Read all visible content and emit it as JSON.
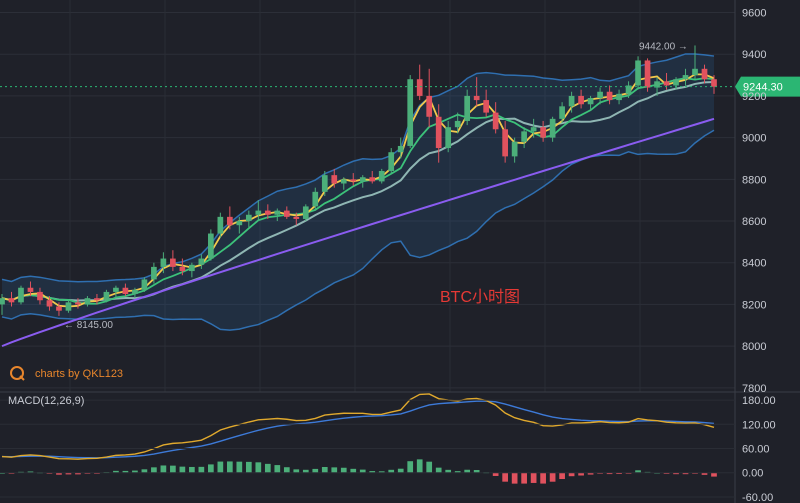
{
  "chart_data": [
    {
      "type": "candlestick",
      "title": "BTC小时图",
      "watermark": "charts by QKL123",
      "y_axis": {
        "ticks": [
          7800,
          8000,
          8200,
          8400,
          8600,
          8800,
          9000,
          9200,
          9400,
          9600
        ],
        "tick_labels": [
          "7800",
          "8000",
          "8200",
          "8400",
          "8600",
          "8800",
          "9000",
          "9200",
          "9400",
          "9600"
        ],
        "ylim": [
          7780,
          9660
        ]
      },
      "current_price": 9244.3,
      "current_price_label": "9244.30",
      "high_marker": {
        "value": 9442.0,
        "label": "9442.00 →"
      },
      "low_marker": {
        "value": 8145.0,
        "label": "← 8145.00"
      },
      "grid": true,
      "colors": {
        "up": "#4caf7a",
        "down": "#e0525e",
        "ma_fast": "#f3c94b",
        "ma_mid": "#3cc27a",
        "ma_slow": "#8fb6b3",
        "ma_long": "#8a5cf0",
        "bollinger": "#2f6fb0",
        "title": "#e53935",
        "price_tag": "#2bb673"
      },
      "pattern": [
        {
          "o": 8200,
          "h": 8250,
          "l": 8150,
          "c": 8230
        },
        {
          "o": 8230,
          "h": 8260,
          "l": 8190,
          "c": 8210
        },
        {
          "o": 8210,
          "h": 8290,
          "l": 8200,
          "c": 8280
        },
        {
          "o": 8280,
          "h": 8310,
          "l": 8240,
          "c": 8260
        },
        {
          "o": 8260,
          "h": 8280,
          "l": 8200,
          "c": 8220
        },
        {
          "o": 8220,
          "h": 8240,
          "l": 8170,
          "c": 8190
        },
        {
          "o": 8190,
          "h": 8210,
          "l": 8145,
          "c": 8170
        },
        {
          "o": 8170,
          "h": 8220,
          "l": 8160,
          "c": 8210
        },
        {
          "o": 8210,
          "h": 8230,
          "l": 8180,
          "c": 8200
        },
        {
          "o": 8200,
          "h": 8240,
          "l": 8190,
          "c": 8230
        },
        {
          "o": 8230,
          "h": 8250,
          "l": 8200,
          "c": 8220
        },
        {
          "o": 8220,
          "h": 8270,
          "l": 8210,
          "c": 8260
        },
        {
          "o": 8260,
          "h": 8290,
          "l": 8230,
          "c": 8280
        },
        {
          "o": 8280,
          "h": 8300,
          "l": 8240,
          "c": 8250
        },
        {
          "o": 8250,
          "h": 8280,
          "l": 8230,
          "c": 8270
        },
        {
          "o": 8270,
          "h": 8330,
          "l": 8260,
          "c": 8320
        },
        {
          "o": 8320,
          "h": 8400,
          "l": 8300,
          "c": 8380
        },
        {
          "o": 8380,
          "h": 8450,
          "l": 8350,
          "c": 8420
        },
        {
          "o": 8420,
          "h": 8460,
          "l": 8360,
          "c": 8380
        },
        {
          "o": 8380,
          "h": 8420,
          "l": 8340,
          "c": 8360
        },
        {
          "o": 8360,
          "h": 8400,
          "l": 8330,
          "c": 8390
        },
        {
          "o": 8390,
          "h": 8440,
          "l": 8370,
          "c": 8420
        },
        {
          "o": 8420,
          "h": 8560,
          "l": 8410,
          "c": 8540
        },
        {
          "o": 8540,
          "h": 8640,
          "l": 8520,
          "c": 8620
        },
        {
          "o": 8620,
          "h": 8670,
          "l": 8560,
          "c": 8580
        },
        {
          "o": 8580,
          "h": 8620,
          "l": 8540,
          "c": 8600
        },
        {
          "o": 8600,
          "h": 8650,
          "l": 8570,
          "c": 8630
        },
        {
          "o": 8630,
          "h": 8700,
          "l": 8600,
          "c": 8650
        },
        {
          "o": 8650,
          "h": 8680,
          "l": 8610,
          "c": 8630
        },
        {
          "o": 8630,
          "h": 8660,
          "l": 8600,
          "c": 8650
        },
        {
          "o": 8650,
          "h": 8670,
          "l": 8610,
          "c": 8620
        },
        {
          "o": 8620,
          "h": 8640,
          "l": 8580,
          "c": 8610
        },
        {
          "o": 8610,
          "h": 8680,
          "l": 8600,
          "c": 8670
        },
        {
          "o": 8670,
          "h": 8760,
          "l": 8650,
          "c": 8740
        },
        {
          "o": 8740,
          "h": 8840,
          "l": 8720,
          "c": 8820
        },
        {
          "o": 8820,
          "h": 8850,
          "l": 8760,
          "c": 8780
        },
        {
          "o": 8780,
          "h": 8810,
          "l": 8750,
          "c": 8800
        },
        {
          "o": 8800,
          "h": 8830,
          "l": 8770,
          "c": 8790
        },
        {
          "o": 8790,
          "h": 8820,
          "l": 8760,
          "c": 8810
        },
        {
          "o": 8810,
          "h": 8840,
          "l": 8780,
          "c": 8790
        },
        {
          "o": 8790,
          "h": 8850,
          "l": 8780,
          "c": 8840
        },
        {
          "o": 8840,
          "h": 8950,
          "l": 8830,
          "c": 8930
        },
        {
          "o": 8930,
          "h": 9000,
          "l": 8900,
          "c": 8960
        },
        {
          "o": 8960,
          "h": 9300,
          "l": 8950,
          "c": 9280
        },
        {
          "o": 9280,
          "h": 9350,
          "l": 9180,
          "c": 9200
        },
        {
          "o": 9200,
          "h": 9330,
          "l": 9050,
          "c": 9100
        },
        {
          "o": 9100,
          "h": 9160,
          "l": 8880,
          "c": 8950
        },
        {
          "o": 8950,
          "h": 9080,
          "l": 8930,
          "c": 9050
        },
        {
          "o": 9050,
          "h": 9120,
          "l": 9020,
          "c": 9080
        },
        {
          "o": 9080,
          "h": 9230,
          "l": 9060,
          "c": 9200
        },
        {
          "o": 9200,
          "h": 9290,
          "l": 9150,
          "c": 9180
        },
        {
          "o": 9180,
          "h": 9230,
          "l": 9100,
          "c": 9120
        },
        {
          "o": 9120,
          "h": 9170,
          "l": 9020,
          "c": 9040
        },
        {
          "o": 9040,
          "h": 9080,
          "l": 8880,
          "c": 8910
        },
        {
          "o": 8910,
          "h": 9000,
          "l": 8880,
          "c": 8980
        },
        {
          "o": 8980,
          "h": 9050,
          "l": 8950,
          "c": 9030
        },
        {
          "o": 9030,
          "h": 9090,
          "l": 9000,
          "c": 9050
        },
        {
          "o": 9050,
          "h": 9080,
          "l": 8980,
          "c": 9000
        },
        {
          "o": 9000,
          "h": 9100,
          "l": 8980,
          "c": 9090
        },
        {
          "o": 9090,
          "h": 9170,
          "l": 9070,
          "c": 9150
        },
        {
          "o": 9150,
          "h": 9220,
          "l": 9120,
          "c": 9200
        },
        {
          "o": 9200,
          "h": 9230,
          "l": 9140,
          "c": 9160
        },
        {
          "o": 9160,
          "h": 9200,
          "l": 9130,
          "c": 9190
        },
        {
          "o": 9190,
          "h": 9240,
          "l": 9160,
          "c": 9220
        },
        {
          "o": 9220,
          "h": 9250,
          "l": 9160,
          "c": 9180
        },
        {
          "o": 9180,
          "h": 9230,
          "l": 9160,
          "c": 9210
        },
        {
          "o": 9210,
          "h": 9270,
          "l": 9190,
          "c": 9250
        },
        {
          "o": 9250,
          "h": 9390,
          "l": 9230,
          "c": 9370
        },
        {
          "o": 9370,
          "h": 9380,
          "l": 9220,
          "c": 9240
        },
        {
          "o": 9240,
          "h": 9290,
          "l": 9200,
          "c": 9270
        },
        {
          "o": 9270,
          "h": 9310,
          "l": 9230,
          "c": 9250
        },
        {
          "o": 9250,
          "h": 9290,
          "l": 9230,
          "c": 9280
        },
        {
          "o": 9280,
          "h": 9330,
          "l": 9250,
          "c": 9300
        },
        {
          "o": 9300,
          "h": 9442,
          "l": 9280,
          "c": 9330
        },
        {
          "o": 9330,
          "h": 9350,
          "l": 9260,
          "c": 9280
        },
        {
          "o": 9280,
          "h": 9300,
          "l": 9210,
          "c": 9244
        }
      ]
    },
    {
      "type": "macd",
      "label": "MACD(12,26,9)",
      "y_axis": {
        "ticks": [
          180,
          120,
          60,
          0,
          -60
        ],
        "tick_labels": [
          "180.00",
          "120.00",
          "60.00",
          "0.00",
          "-60.00"
        ],
        "ylim": [
          -75,
          200
        ]
      },
      "colors": {
        "dif": "#e0a92d",
        "dea": "#3d7ad8",
        "hist_up": "#4caf7a",
        "hist_down": "#e0525e"
      }
    }
  ]
}
